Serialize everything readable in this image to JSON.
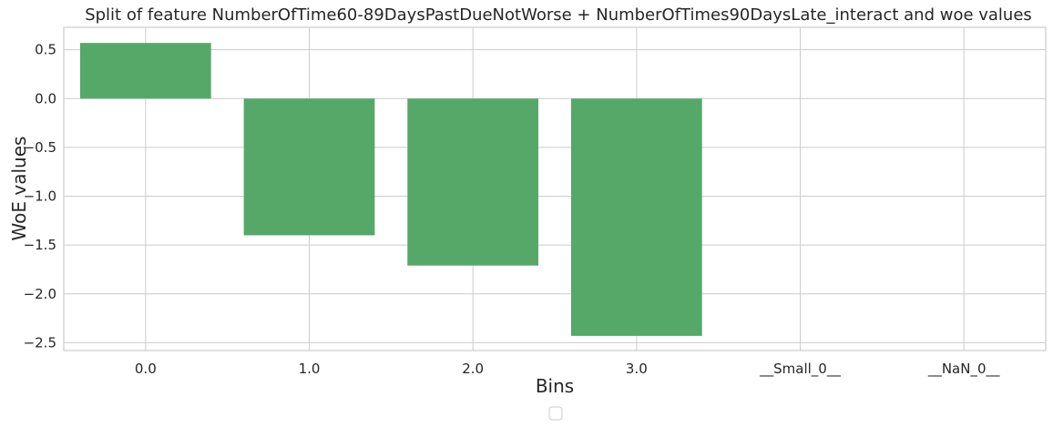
{
  "chart_data": {
    "type": "bar",
    "title": "Split of feature NumberOfTime60-89DaysPastDueNotWorse + NumberOfTimes90DaysLate_interact and woe values",
    "xlabel": "Bins",
    "ylabel": "WoE values",
    "categories": [
      "0.0",
      "1.0",
      "2.0",
      "3.0",
      "__Small_0__",
      "__NaN_0__"
    ],
    "values": [
      0.57,
      -1.4,
      -1.71,
      -2.43,
      0.0,
      0.0
    ],
    "ylim": [
      -2.58,
      0.73
    ],
    "yticks": [
      0.5,
      0.0,
      -0.5,
      -1.0,
      -1.5,
      -2.0,
      -2.5
    ],
    "ytick_labels": [
      "0.5",
      "0.0",
      "−0.5",
      "−1.0",
      "−1.5",
      "−2.0",
      "−2.5"
    ],
    "grid": true,
    "legend": "bottom-center, empty",
    "bar_color": "#55a868",
    "grid_color": "#cccccc",
    "axis_color": "#cccccc"
  }
}
